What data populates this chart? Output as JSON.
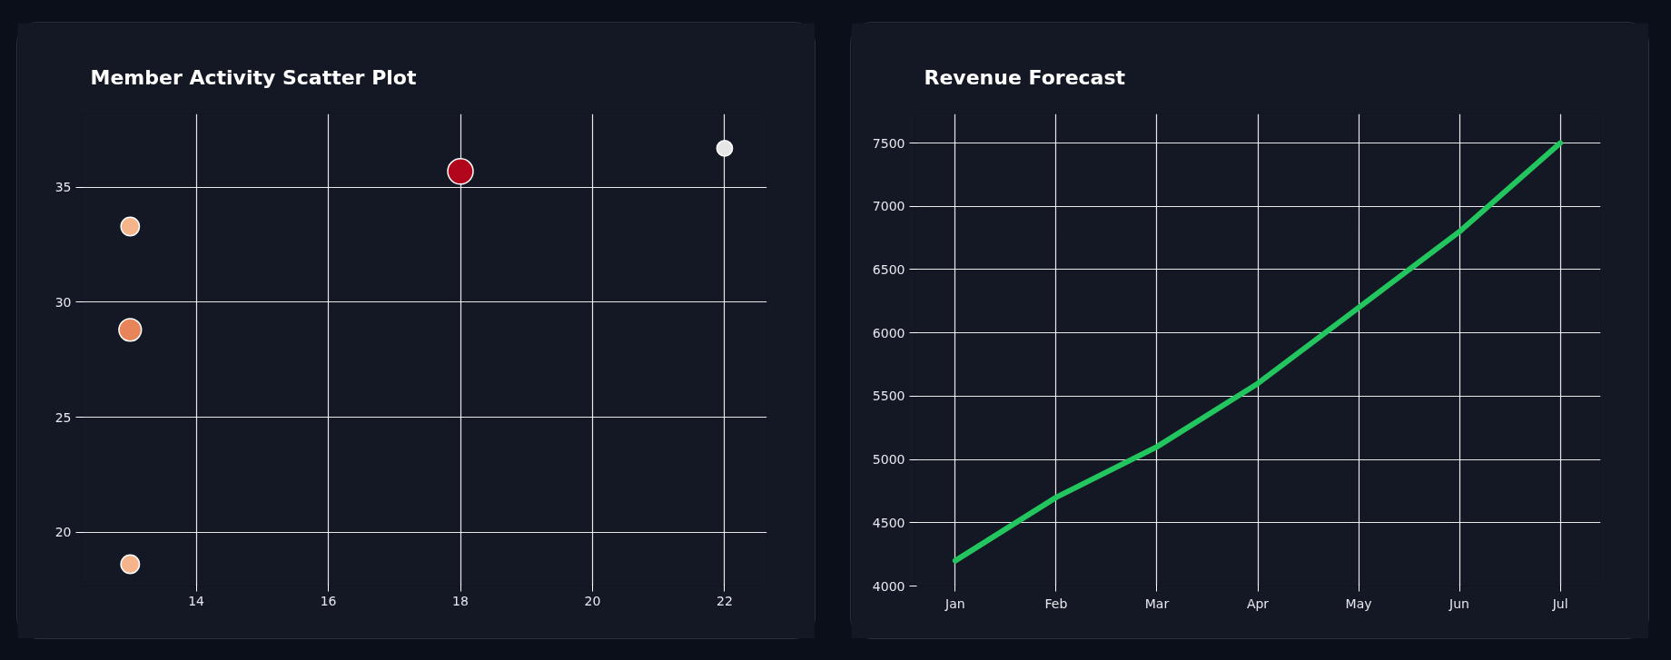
{
  "chart_data": [
    {
      "type": "bubble",
      "title": "Member Activity Scatter Plot",
      "x": [
        13,
        13,
        13,
        18,
        22
      ],
      "values": [
        33.3,
        28.8,
        18.6,
        35.7,
        36.7
      ],
      "sizes": [
        0.53,
        0.78,
        0.53,
        1,
        0.38
      ],
      "colors": [
        "#f6b48a",
        "#e8845a",
        "#f6b48a",
        "#b2061c",
        "#e6e6e6"
      ],
      "xlim": [
        12.26,
        22.64
      ],
      "ylim": [
        17.65,
        38.2
      ],
      "xticks": [
        14,
        16,
        18,
        20,
        22
      ],
      "yticks": [
        20,
        25,
        30,
        35
      ],
      "grid": true
    },
    {
      "type": "line",
      "title": "Revenue Forecast",
      "categories": [
        "Jan",
        "Feb",
        "Mar",
        "Apr",
        "May",
        "Jun",
        "Jul"
      ],
      "series": [
        {
          "color": "#22c55e",
          "values": [
            4200,
            4700,
            5100,
            5600,
            6200,
            6800,
            7500
          ]
        }
      ],
      "ylim": [
        4000,
        7730
      ],
      "yticks": [
        4000,
        4500,
        5000,
        5500,
        6000,
        6500,
        7000,
        7500
      ],
      "grid": true,
      "marker": "none",
      "line_style": "solid"
    }
  ]
}
